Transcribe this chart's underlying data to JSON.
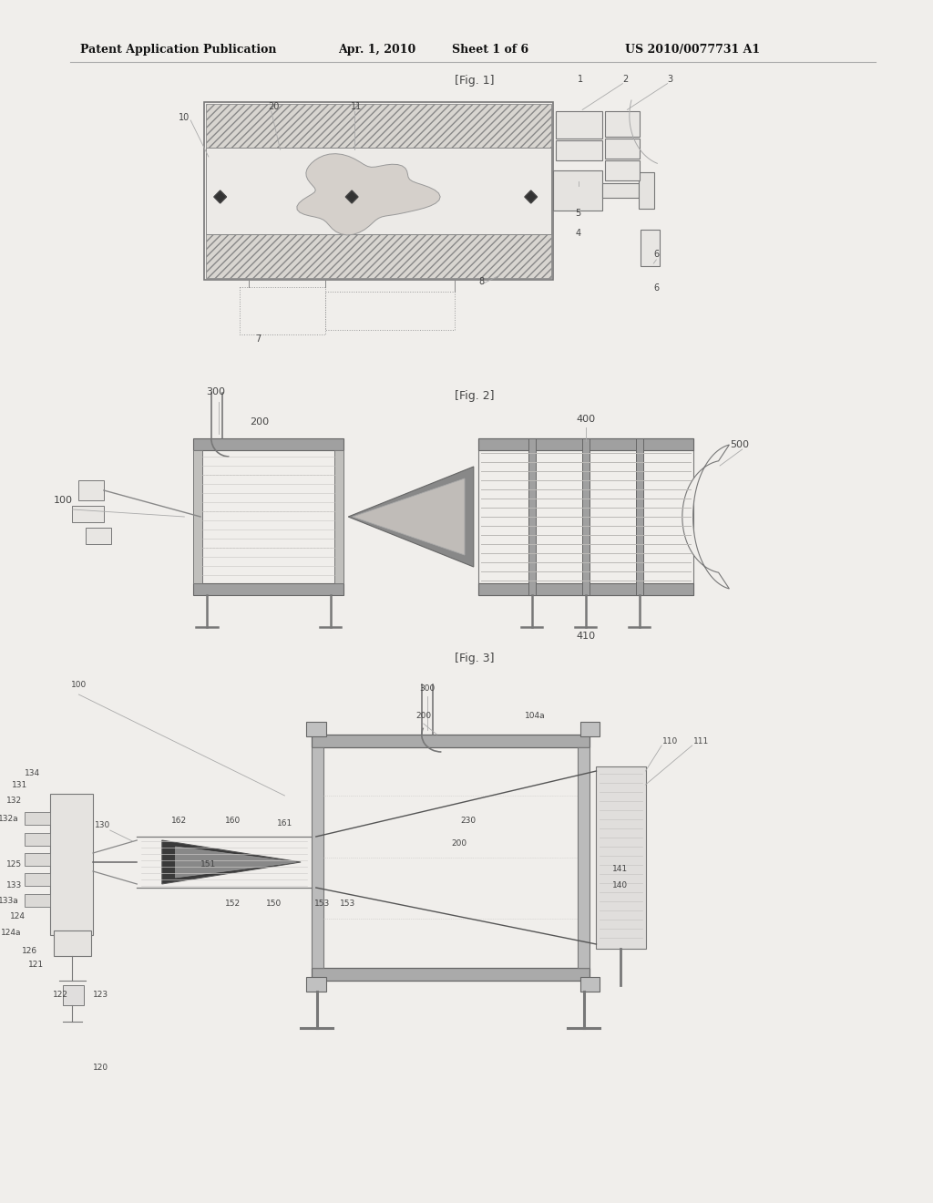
{
  "bg_color": "#f0eeeb",
  "line_color": "#aaaaaa",
  "dark_line": "#666666",
  "text_color": "#444444",
  "header_color": "#111111",
  "header_text": "Patent Application Publication",
  "header_date": "Apr. 1, 2010",
  "header_sheet": "Sheet 1 of 6",
  "header_patent": "US 2010/0077731 A1",
  "fig1_label": "[Fig. 1]",
  "fig2_label": "[Fig. 2]",
  "fig3_label": "[Fig. 3]"
}
